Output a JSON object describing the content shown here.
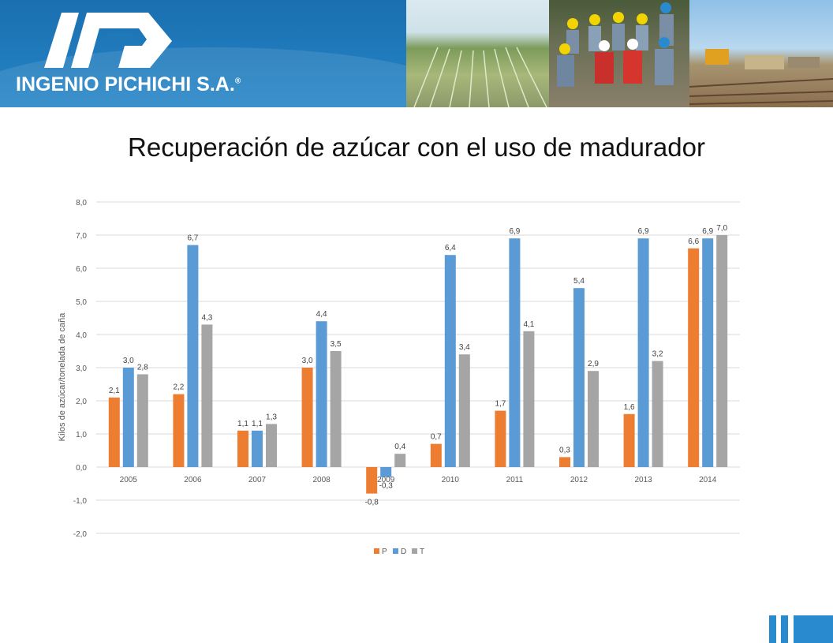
{
  "header": {
    "company": "INGENIO PICHICHI S.A.",
    "registered": "®",
    "logo_text": "iP"
  },
  "title": "Recuperación de azúcar con el uso de madurador",
  "colors": {
    "P": "#ed7d31",
    "D": "#5b9bd5",
    "T": "#a5a5a5",
    "banner": "#1f78b8",
    "grid": "#d9d9d9"
  },
  "chart_data": {
    "type": "bar",
    "categories": [
      "2005",
      "2006",
      "2007",
      "2008",
      "2009",
      "2010",
      "2011",
      "2012",
      "2013",
      "2014"
    ],
    "series": [
      {
        "name": "P",
        "values": [
          2.1,
          2.2,
          1.1,
          3.0,
          -0.8,
          0.7,
          1.7,
          0.3,
          1.6,
          6.6
        ]
      },
      {
        "name": "D",
        "values": [
          3.0,
          6.7,
          1.1,
          4.4,
          -0.3,
          6.4,
          6.9,
          5.4,
          6.9,
          6.9
        ]
      },
      {
        "name": "T",
        "values": [
          2.8,
          4.3,
          1.3,
          3.5,
          0.4,
          3.4,
          4.1,
          2.9,
          3.2,
          7.0
        ]
      }
    ],
    "ylabel": "Kilos de azúcar/tonelada de caña",
    "xlabel": "",
    "ylim": [
      -2.0,
      8.0
    ],
    "yticks": [
      "8,0",
      "7,0",
      "6,0",
      "5,0",
      "4,0",
      "3,0",
      "2,0",
      "1,0",
      "0,0",
      "-1,0",
      "-2,0"
    ],
    "data_labels": [
      [
        "2,1",
        "2,2",
        "1,1",
        "3,0",
        "-0,8",
        "0,7",
        "1,7",
        "0,3",
        "1,6",
        "6,6"
      ],
      [
        "3,0",
        "6,7",
        "1,1",
        "4,4",
        "-0,3",
        "6,4",
        "6,9",
        "5,4",
        "6,9",
        "6,9"
      ],
      [
        "2,8",
        "4,3",
        "1,3",
        "3,5",
        "0,4",
        "3,4",
        "4,1",
        "2,9",
        "3,2",
        "7,0"
      ]
    ],
    "legend": [
      "P",
      "D",
      "T"
    ],
    "legend_position": "bottom",
    "grid": true
  }
}
